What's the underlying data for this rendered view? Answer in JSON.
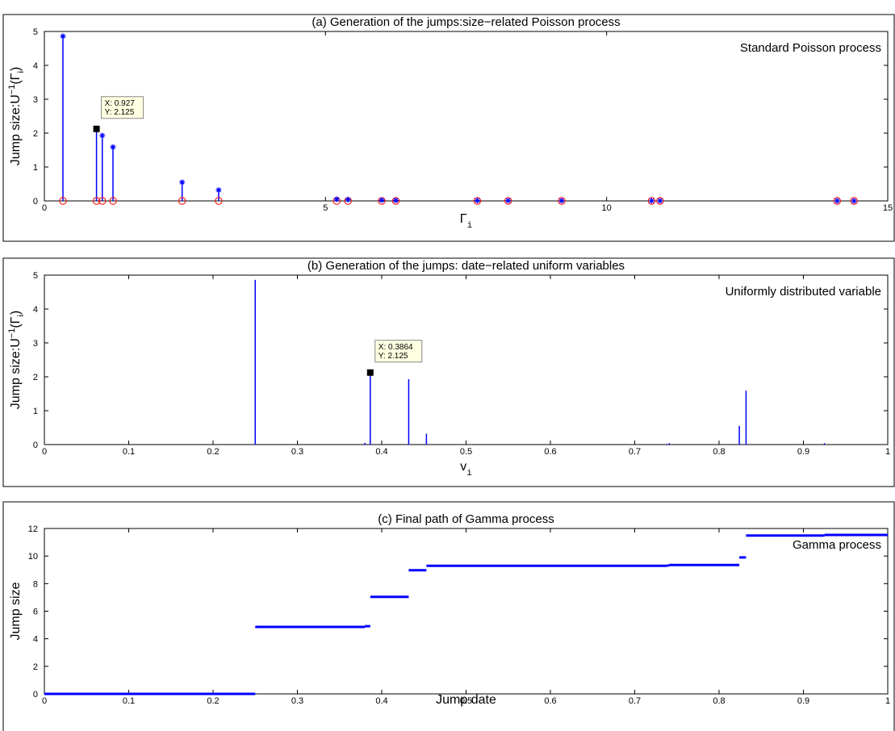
{
  "chart_data": [
    {
      "type": "stem",
      "title": "(a) Generation of the jumps:size−related Poisson process",
      "xlabel": "Γ",
      "xlabel_sub": "i",
      "ylabel": "Jump size:U",
      "ylabel_sup": "−1",
      "ylabel_tail": "(Γ",
      "ylabel_sub": "i",
      "ylabel_close": ")",
      "xlim": [
        0,
        15
      ],
      "ylim": [
        0,
        5
      ],
      "xticks": [
        0,
        5,
        10,
        15
      ],
      "yticks": [
        0,
        1,
        2,
        3,
        4,
        5
      ],
      "legend": "Standard Poisson process",
      "series": [
        {
          "x": [
            0.33,
            0.927,
            1.03,
            1.22,
            2.45,
            3.1,
            5.2,
            5.4,
            6.0,
            6.25,
            7.7,
            8.25,
            9.2,
            10.8,
            10.95,
            14.1,
            14.4
          ],
          "y": [
            4.86,
            2.125,
            1.93,
            1.59,
            0.55,
            0.32,
            0.05,
            0.04,
            0.02,
            0.015,
            0.01,
            0.008,
            0.006,
            0.004,
            0.003,
            0.002,
            0.001
          ]
        }
      ],
      "datatip": {
        "x": 0.927,
        "y": 2.125,
        "line1": "X: 0.927",
        "line2": "Y: 2.125"
      },
      "colors": {
        "stem": "#0000ff",
        "marker_circle": "#ff0000",
        "marker_star": "#0000ff"
      }
    },
    {
      "type": "stem",
      "title": "(b) Generation of the jumps: date−related uniform variables",
      "xlabel": "v",
      "xlabel_sub": "i",
      "ylabel": "Jump size:U",
      "ylabel_sup": "−1",
      "ylabel_tail": "(Γ",
      "ylabel_sub": "i",
      "ylabel_close": ")",
      "xlim": [
        0,
        1
      ],
      "ylim": [
        0,
        5
      ],
      "xticks": [
        0,
        0.1,
        0.2,
        0.3,
        0.4,
        0.5,
        0.6,
        0.7,
        0.8,
        0.9,
        1
      ],
      "xticklabels": [
        "0",
        "0.1",
        "0.2",
        "0.3",
        "0.4",
        "0.5",
        "0.6",
        "0.7",
        "0.8",
        "0.9",
        "1"
      ],
      "yticks": [
        0,
        1,
        2,
        3,
        4,
        5
      ],
      "legend": "Uniformly distributed variable",
      "series": [
        {
          "x": [
            0.25,
            0.3864,
            0.432,
            0.832,
            0.824,
            0.453,
            0.38,
            0.741,
            0.925,
            0.738
          ],
          "y": [
            4.86,
            2.125,
            1.93,
            1.59,
            0.55,
            0.32,
            0.05,
            0.04,
            0.04,
            0.02
          ]
        }
      ],
      "datatip": {
        "x": 0.3864,
        "y": 2.125,
        "line1": "X: 0.3864",
        "line2": "Y: 2.125"
      },
      "colors": {
        "stem": "#0000ff"
      }
    },
    {
      "type": "line",
      "title": "(c) Final path of Gamma process",
      "xlabel": "Jump date",
      "ylabel": "Jump size",
      "xlim": [
        0,
        1
      ],
      "ylim": [
        0,
        12
      ],
      "xticks": [
        0,
        0.1,
        0.2,
        0.3,
        0.4,
        0.5,
        0.6,
        0.7,
        0.8,
        0.9,
        1
      ],
      "xticklabels": [
        "0",
        "0.1",
        "0.2",
        "0.3",
        "0.4",
        "0.5",
        "0.6",
        "0.7",
        "0.8",
        "0.9",
        "1"
      ],
      "yticks": [
        0,
        2,
        4,
        6,
        8,
        10,
        12
      ],
      "legend": "Gamma process",
      "series": [
        {
          "segments": [
            [
              0,
              0.25,
              0
            ],
            [
              0.25,
              0.38,
              4.86
            ],
            [
              0.38,
              0.3864,
              4.91
            ],
            [
              0.3864,
              0.432,
              7.04
            ],
            [
              0.432,
              0.453,
              8.97
            ],
            [
              0.453,
              0.738,
              9.29
            ],
            [
              0.738,
              0.741,
              9.31
            ],
            [
              0.741,
              0.824,
              9.35
            ],
            [
              0.824,
              0.832,
              9.9
            ],
            [
              0.832,
              0.925,
              11.49
            ],
            [
              0.925,
              1.0,
              11.53
            ]
          ]
        }
      ],
      "colors": {
        "line": "#0000ff"
      }
    }
  ]
}
